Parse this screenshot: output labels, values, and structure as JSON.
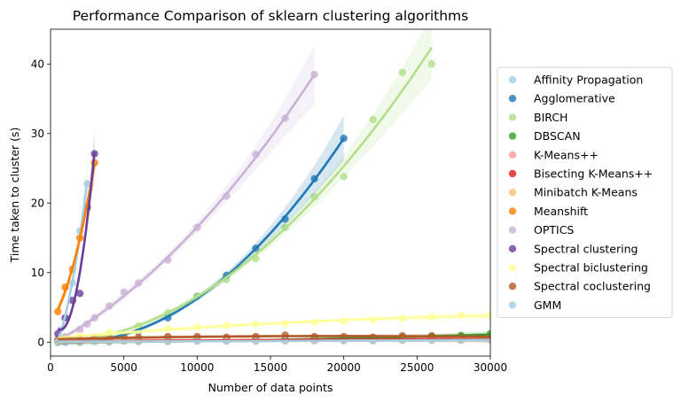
{
  "chart_data": {
    "type": "scatter",
    "title": "Performance Comparison of sklearn clustering algorithms",
    "xlabel": "Number of data points",
    "ylabel": "Time taken to cluster (s)",
    "xlim": [
      0,
      30000
    ],
    "ylim": [
      -2,
      45
    ],
    "xticks": [
      0,
      5000,
      10000,
      15000,
      20000,
      25000,
      30000
    ],
    "yticks": [
      0,
      10,
      20,
      30,
      40
    ],
    "grid": false,
    "legend_position": "right",
    "series": [
      {
        "name": "Affinity Propagation",
        "color": "#a6cee3",
        "x": [
          500,
          1000,
          1500,
          2000,
          2500
        ],
        "y": [
          0.4,
          3.5,
          8.5,
          16.0,
          22.8
        ]
      },
      {
        "name": "Agglomerative",
        "color": "#1f78b4",
        "x": [
          500,
          1000,
          2000,
          4000,
          6000,
          8000,
          10000,
          12000,
          14000,
          16000,
          18000,
          20000
        ],
        "y": [
          0.0,
          0.0,
          0.1,
          0.6,
          1.6,
          3.5,
          6.6,
          9.6,
          13.5,
          17.7,
          23.5,
          29.3
        ]
      },
      {
        "name": "BIRCH",
        "color": "#b2df8a",
        "x": [
          500,
          2000,
          4000,
          6000,
          8000,
          10000,
          12000,
          14000,
          16000,
          18000,
          20000,
          22000,
          24000,
          26000
        ],
        "y": [
          0.0,
          0.3,
          1.2,
          2.3,
          4.2,
          6.6,
          9.0,
          12.0,
          16.5,
          20.9,
          23.8,
          32.0,
          38.8,
          40.0
        ]
      },
      {
        "name": "DBSCAN",
        "color": "#33a02c",
        "x": [
          500,
          2000,
          4000,
          6000,
          8000,
          10000,
          12000,
          14000,
          16000,
          18000,
          20000,
          22000,
          24000,
          26000,
          28000,
          30000
        ],
        "y": [
          0.0,
          0.0,
          0.05,
          0.1,
          0.15,
          0.2,
          0.25,
          0.3,
          0.4,
          0.45,
          0.5,
          0.6,
          0.7,
          0.8,
          0.95,
          1.2
        ]
      },
      {
        "name": "K-Means++",
        "color": "#fb9a99",
        "x": [
          500,
          2000,
          4000,
          6000,
          8000,
          10000,
          12000,
          14000,
          16000,
          18000,
          20000,
          22000,
          24000,
          26000,
          28000,
          30000
        ],
        "y": [
          0.1,
          0.15,
          0.2,
          0.2,
          0.25,
          0.25,
          0.3,
          0.3,
          0.3,
          0.35,
          0.35,
          0.35,
          0.4,
          0.4,
          0.4,
          0.45
        ]
      },
      {
        "name": "Bisecting K-Means++",
        "color": "#e31a1c",
        "x": [
          500,
          2000,
          4000,
          6000,
          8000,
          10000,
          12000,
          14000,
          16000,
          18000,
          20000,
          22000,
          24000,
          26000,
          28000,
          30000
        ],
        "y": [
          0.05,
          0.1,
          0.15,
          0.2,
          0.2,
          0.25,
          0.25,
          0.3,
          0.3,
          0.3,
          0.35,
          0.35,
          0.4,
          0.4,
          0.4,
          0.45
        ]
      },
      {
        "name": "Minibatch K-Means",
        "color": "#fdbf6f",
        "x": [
          500,
          2000,
          4000,
          6000,
          8000,
          10000,
          12000,
          14000,
          16000,
          18000,
          20000,
          22000,
          24000,
          26000,
          28000,
          30000
        ],
        "y": [
          0.05,
          0.05,
          0.1,
          0.1,
          0.1,
          0.15,
          0.15,
          0.15,
          0.2,
          0.2,
          0.2,
          0.2,
          0.25,
          0.25,
          0.25,
          0.3
        ]
      },
      {
        "name": "Meanshift",
        "color": "#ff7f00",
        "x": [
          500,
          1000,
          1500,
          2000,
          2500,
          3000
        ],
        "y": [
          4.4,
          7.9,
          10.5,
          15.0,
          19.5,
          25.8
        ]
      },
      {
        "name": "OPTICS",
        "color": "#cab2d6",
        "x": [
          500,
          1000,
          2000,
          2500,
          3000,
          4000,
          5000,
          6000,
          8000,
          10000,
          12000,
          14000,
          16000,
          18000
        ],
        "y": [
          0.3,
          0.8,
          1.8,
          2.6,
          3.5,
          5.2,
          7.2,
          8.5,
          11.8,
          16.5,
          21.0,
          27.0,
          32.2,
          38.5
        ]
      },
      {
        "name": "Spectral clustering",
        "color": "#6a3d9a",
        "x": [
          500,
          1000,
          1500,
          2000,
          2500,
          3000
        ],
        "y": [
          1.2,
          3.5,
          6.0,
          7.0,
          19.3,
          27.1
        ]
      },
      {
        "name": "Spectral biclustering",
        "color": "#ffff99",
        "x": [
          500,
          2000,
          4000,
          6000,
          8000,
          10000,
          12000,
          14000,
          16000,
          18000,
          20000,
          22000,
          24000,
          26000,
          28000,
          30000
        ],
        "y": [
          0.2,
          0.9,
          1.4,
          1.7,
          2.0,
          2.2,
          2.4,
          2.6,
          2.7,
          2.8,
          3.0,
          3.2,
          3.4,
          3.6,
          3.9,
          3.9
        ]
      },
      {
        "name": "Spectral coclustering",
        "color": "#b15928",
        "x": [
          500,
          1000,
          2000,
          3000,
          4000,
          5000,
          6000,
          8000,
          10000,
          12000,
          14000,
          16000,
          18000,
          20000,
          22000,
          24000,
          26000,
          28000,
          30000
        ],
        "y": [
          0.3,
          0.4,
          0.4,
          0.6,
          0.6,
          0.8,
          0.7,
          0.8,
          0.8,
          0.7,
          0.8,
          1.0,
          0.8,
          0.8,
          0.7,
          0.9,
          0.9,
          0.8,
          0.8
        ]
      },
      {
        "name": "GMM",
        "color": "#a6cee3",
        "x": [
          500,
          1000,
          2000,
          3000,
          4000,
          5000,
          6000,
          8000,
          10000,
          12000,
          14000,
          16000,
          18000,
          20000,
          22000,
          24000,
          26000,
          28000,
          30000
        ],
        "y": [
          0.05,
          0.05,
          0.05,
          0.05,
          0.1,
          0.1,
          0.1,
          0.1,
          0.15,
          0.15,
          0.15,
          0.2,
          0.2,
          0.2,
          0.2,
          0.25,
          0.25,
          0.25,
          0.3
        ]
      }
    ]
  }
}
